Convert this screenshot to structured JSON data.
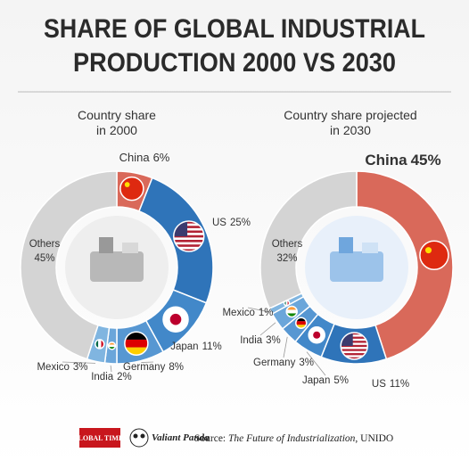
{
  "title": [
    "SHARE OF GLOBAL INDUSTRIAL",
    "PRODUCTION 2000 VS 2030"
  ],
  "chart_data": [
    {
      "type": "pie",
      "subtitle": [
        "Country share",
        "in 2000"
      ],
      "categories": [
        "China",
        "US",
        "Japan",
        "Germany",
        "India",
        "Mexico",
        "Others"
      ],
      "values": [
        6,
        25,
        11,
        8,
        2,
        3,
        45
      ],
      "value_labels": [
        "6%",
        "25%",
        "11%",
        "8%",
        "2%",
        "3%",
        "45%"
      ],
      "colors": [
        "#d9695a",
        "#2f74b9",
        "#4288c9",
        "#5797d2",
        "#6ba6da",
        "#80b5e0",
        "#d4d4d4"
      ]
    },
    {
      "type": "pie",
      "subtitle": [
        "Country share projected",
        "in 2030"
      ],
      "categories": [
        "China",
        "US",
        "Japan",
        "Germany",
        "India",
        "Mexico",
        "Others"
      ],
      "values": [
        45,
        11,
        5,
        3,
        3,
        1,
        32
      ],
      "value_labels": [
        "45%",
        "11%",
        "5%",
        "3%",
        "3%",
        "1%",
        "32%"
      ],
      "colors": [
        "#d9695a",
        "#2f74b9",
        "#4288c9",
        "#5797d2",
        "#6ba6da",
        "#80b5e0",
        "#d4d4d4"
      ]
    }
  ],
  "footer": {
    "logo1": "GLOBAL TIMES",
    "logo2": "Valiant Panda",
    "source_prefix": "Source: ",
    "source_title": "The Future of Industrialization",
    "source_suffix": ", UNIDO"
  }
}
